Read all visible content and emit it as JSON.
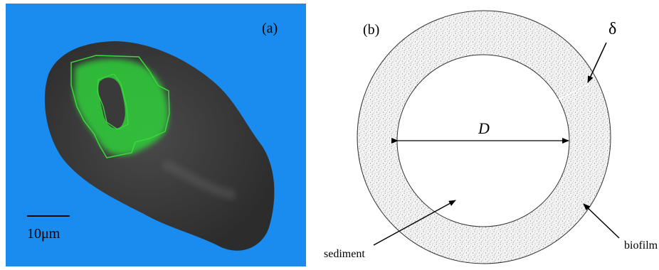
{
  "panel_a": {
    "label": "(a)",
    "scale_label": "10μm"
  },
  "panel_b": {
    "label": "(b)",
    "thickness_label": "δ",
    "diameter_label": "D",
    "sediment_label": "sediment",
    "biofilm_label": "biofilm"
  }
}
